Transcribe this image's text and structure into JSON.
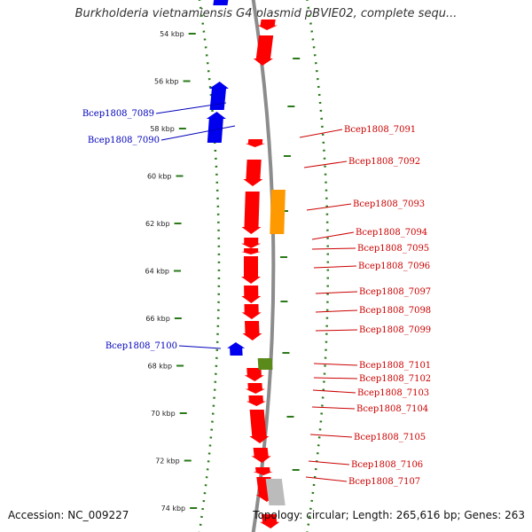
{
  "title": "Burkholderia vietnamiensis G4 plasmid pBVIE02, complete sequ...",
  "footer": {
    "accession": "Accession: NC_009227",
    "summary": "Topology: circular; Length: 265,616 bp; Genes: 263"
  },
  "colors": {
    "backbone": "#8c8c8c",
    "tick": "#2a7a1a",
    "forward_gene": "#ff0000",
    "reverse_gene": "#0000ee",
    "forward_label": "#cc0000",
    "reverse_label": "#0000bb",
    "orange_feature": "#ff9900",
    "green_feature": "#5a8a1a",
    "gray_feature": "#bbbbbb"
  },
  "ticks": [
    "54 kbp",
    "56 kbp",
    "58 kbp",
    "60 kbp",
    "62 kbp",
    "64 kbp",
    "66 kbp",
    "68 kbp",
    "70 kbp",
    "72 kbp",
    "74 kbp"
  ],
  "forward_genes": [
    "Bcep1808_7091",
    "Bcep1808_7092",
    "Bcep1808_7093",
    "Bcep1808_7094",
    "Bcep1808_7095",
    "Bcep1808_7096",
    "Bcep1808_7097",
    "Bcep1808_7098",
    "Bcep1808_7099",
    "Bcep1808_7101",
    "Bcep1808_7102",
    "Bcep1808_7103",
    "Bcep1808_7104",
    "Bcep1808_7105",
    "Bcep1808_7106",
    "Bcep1808_7107"
  ],
  "reverse_genes": [
    "Bcep1808_7089",
    "Bcep1808_7090",
    "Bcep1808_7100"
  ]
}
